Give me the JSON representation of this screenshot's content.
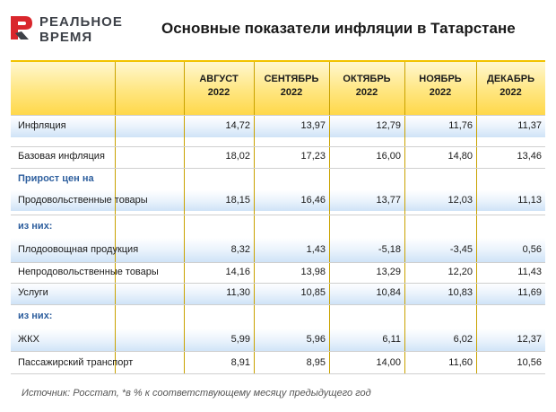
{
  "logo": {
    "line1": "РЕАЛЬНОЕ",
    "line2": "ВРЕМЯ",
    "accent": "#d9262c"
  },
  "title": "Основные показатели инфляции в Татарстане",
  "source": "Источник: Росстат, *в % к соответствующему месяцу предыдущего год",
  "chart_data": {
    "type": "table",
    "columns": [
      {
        "month": "АВГУСТ",
        "year": "2022"
      },
      {
        "month": "СЕНТЯБРЬ",
        "year": "2022"
      },
      {
        "month": "ОКТЯБРЬ",
        "year": "2022"
      },
      {
        "month": "НОЯБРЬ",
        "year": "2022"
      },
      {
        "month": "ДЕКАБРЬ",
        "year": "2022"
      }
    ],
    "rows": [
      {
        "kind": "data",
        "label": "Инфляция",
        "values": [
          "14,72",
          "13,97",
          "12,79",
          "11,76",
          "11,37"
        ]
      },
      {
        "kind": "data",
        "label": "Базовая инфляция",
        "values": [
          "18,02",
          "17,23",
          "16,00",
          "14,80",
          "13,46"
        ]
      },
      {
        "kind": "section",
        "label": "Прирост цен на"
      },
      {
        "kind": "data",
        "label": "Продовольственные товары",
        "values": [
          "18,15",
          "16,46",
          "13,77",
          "12,03",
          "11,13"
        ]
      },
      {
        "kind": "section",
        "label": "из них:"
      },
      {
        "kind": "data",
        "label": "Плодоовощная продукция",
        "values": [
          "8,32",
          "1,43",
          "-5,18",
          "-3,45",
          "0,56"
        ]
      },
      {
        "kind": "data",
        "label": "Непродовольственные товары",
        "values": [
          "14,16",
          "13,98",
          "13,29",
          "12,20",
          "11,43"
        ]
      },
      {
        "kind": "data",
        "label": "Услуги",
        "values": [
          "11,30",
          "10,85",
          "10,84",
          "10,83",
          "11,69"
        ]
      },
      {
        "kind": "section",
        "label": "из них:"
      },
      {
        "kind": "data",
        "label": "ЖКХ",
        "values": [
          "5,99",
          "5,96",
          "6,11",
          "6,02",
          "12,37"
        ]
      },
      {
        "kind": "data",
        "label": "Пассажирский транспорт",
        "values": [
          "8,91",
          "8,95",
          "14,00",
          "11,60",
          "10,56"
        ]
      }
    ]
  }
}
